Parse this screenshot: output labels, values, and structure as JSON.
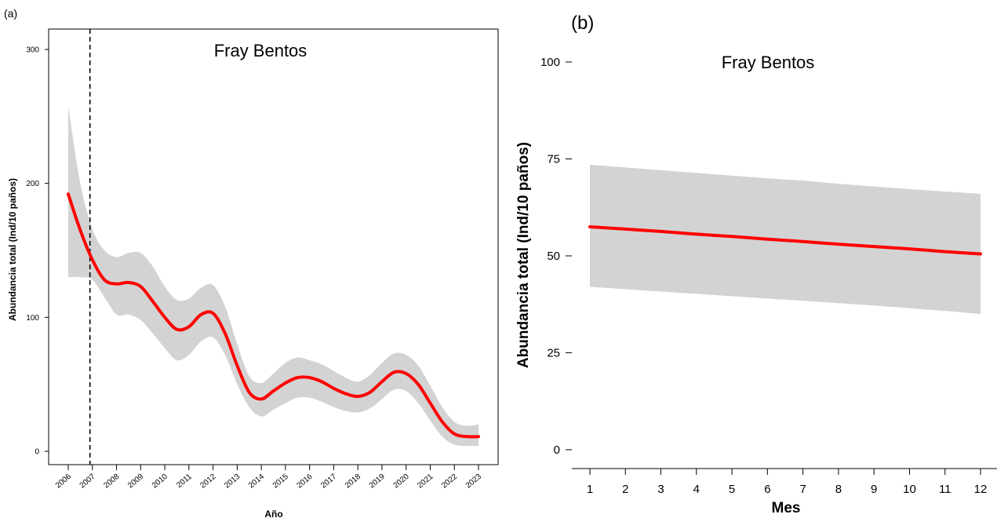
{
  "chart_data": [
    {
      "panel_label": "(a)",
      "type": "line",
      "title": "Fray Bentos",
      "xlabel": "Año",
      "ylabel": "Abundancia total (Ind/10 paños)",
      "x_ticks": [
        "2006",
        "2007",
        "2008",
        "2009",
        "2010",
        "2011",
        "2012",
        "2013",
        "2014",
        "2015",
        "2016",
        "2017",
        "2018",
        "2019",
        "2020",
        "2021",
        "2022",
        "2023"
      ],
      "y_ticks": [
        0,
        100,
        200,
        300
      ],
      "xlim": [
        2005.2,
        2023.3
      ],
      "ylim": [
        -15,
        325
      ],
      "vertical_line_x": 2006.9,
      "series": [
        {
          "color": "#ff0000",
          "x": [
            2006,
            2006.5,
            2007,
            2007.5,
            2008,
            2008.5,
            2009,
            2009.5,
            2010,
            2010.5,
            2011,
            2011.5,
            2012,
            2012.5,
            2013,
            2013.5,
            2014,
            2014.5,
            2015,
            2015.5,
            2016,
            2016.5,
            2017,
            2017.5,
            2018,
            2018.5,
            2019,
            2019.5,
            2020,
            2020.5,
            2021,
            2021.5,
            2022,
            2022.5,
            2023
          ],
          "y": [
            192,
            165,
            143,
            128,
            125,
            126,
            123,
            112,
            100,
            91,
            93,
            102,
            103,
            88,
            64,
            44,
            39,
            45,
            51,
            55,
            55,
            52,
            47,
            43,
            41,
            44,
            52,
            59,
            58,
            50,
            36,
            22,
            13,
            11,
            11
          ],
          "ci_lower": [
            130,
            130,
            128,
            115,
            102,
            102,
            98,
            88,
            77,
            68,
            72,
            82,
            85,
            72,
            50,
            33,
            26,
            31,
            36,
            40,
            40,
            37,
            33,
            30,
            29,
            32,
            39,
            46,
            45,
            36,
            23,
            11,
            5,
            4,
            4
          ],
          "ci_upper": [
            258,
            200,
            166,
            150,
            145,
            148,
            148,
            138,
            123,
            113,
            114,
            122,
            124,
            108,
            80,
            56,
            51,
            58,
            66,
            70,
            68,
            65,
            60,
            55,
            52,
            57,
            66,
            73,
            72,
            64,
            49,
            33,
            22,
            19,
            20
          ]
        }
      ],
      "grid": false
    },
    {
      "panel_label": "(b)",
      "type": "line",
      "title": "Fray Bentos",
      "xlabel": "Mes",
      "ylabel": "Abundancia total (Ind/10 paños)",
      "x_ticks": [
        1,
        2,
        3,
        4,
        5,
        6,
        7,
        8,
        9,
        10,
        11,
        12
      ],
      "y_ticks": [
        0,
        25,
        50,
        75,
        100
      ],
      "xlim": [
        0.5,
        12.5
      ],
      "ylim": [
        -5,
        105
      ],
      "series": [
        {
          "color": "#ff0000",
          "x": [
            1,
            2,
            3,
            4,
            5,
            6,
            7,
            8,
            9,
            10,
            11,
            12
          ],
          "y": [
            57.5,
            56.9,
            56.3,
            55.6,
            55.0,
            54.3,
            53.7,
            53.0,
            52.4,
            51.8,
            51.1,
            50.5
          ],
          "ci_lower": [
            42,
            41.4,
            40.8,
            40.2,
            39.6,
            39.0,
            38.4,
            37.8,
            37.2,
            36.5,
            35.8,
            35
          ],
          "ci_upper": [
            73.5,
            72.8,
            72.1,
            71.4,
            70.7,
            70.0,
            69.4,
            68.6,
            67.9,
            67.2,
            66.6,
            66
          ]
        }
      ],
      "grid": false
    }
  ]
}
